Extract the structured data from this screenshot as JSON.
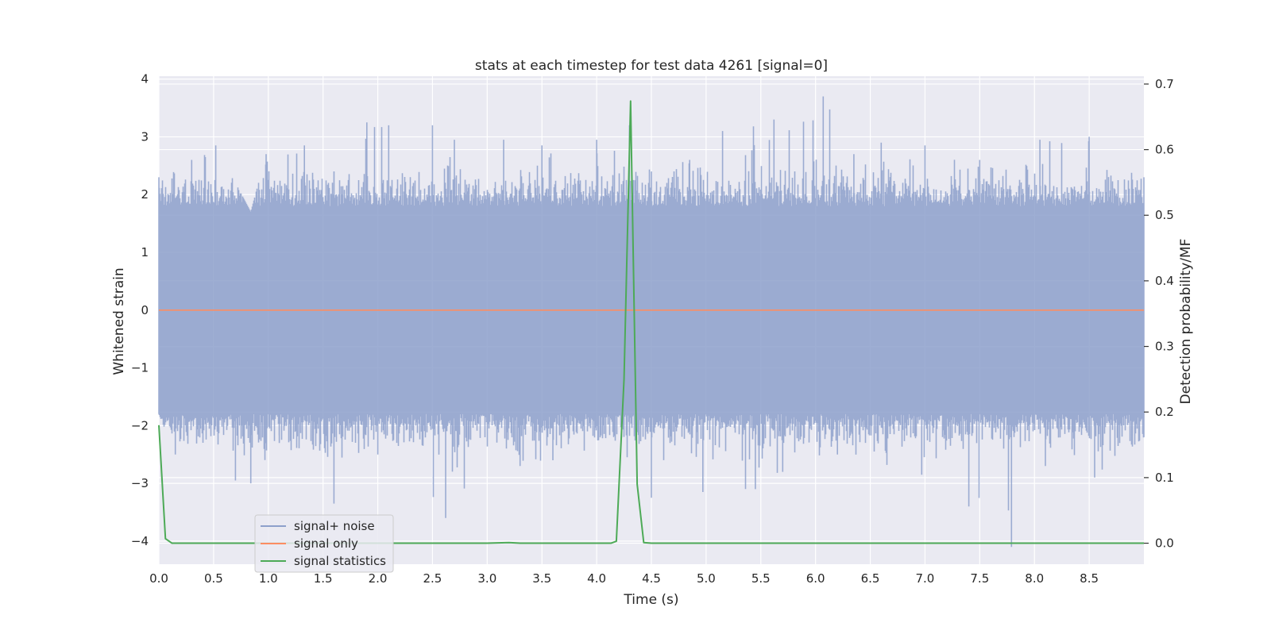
{
  "chart_data": {
    "type": "line",
    "title": "stats at each timestep for test data 4261 [signal=0]",
    "xlabel": "Time (s)",
    "ylabel": "Whitened strain",
    "ylabel_right": "Detection probability/MF",
    "xlim": [
      0.0,
      9.0
    ],
    "ylim": [
      -4.4,
      4.05
    ],
    "ylim_right": [
      -0.032,
      0.712
    ],
    "x_ticks": [
      "0.0",
      "0.5",
      "1.0",
      "1.5",
      "2.0",
      "2.5",
      "3.0",
      "3.5",
      "4.0",
      "4.5",
      "5.0",
      "5.5",
      "6.0",
      "6.5",
      "7.0",
      "7.5",
      "8.0",
      "8.5"
    ],
    "y_ticks": [
      "4",
      "3",
      "2",
      "1",
      "0",
      "−1",
      "−2",
      "−3",
      "−4"
    ],
    "y_right_ticks": [
      "0.7",
      "0.6",
      "0.5",
      "0.4",
      "0.3",
      "0.2",
      "0.1",
      "0.0"
    ],
    "grid": true,
    "legend_position": "lower-left",
    "series": [
      {
        "name": "signal+ noise",
        "color": "#8da0cb",
        "axis": "left",
        "sample_rate_hz": 2048,
        "envelope_max": [
          [
            0.0,
            2.3
          ],
          [
            0.3,
            2.6
          ],
          [
            0.52,
            2.85
          ],
          [
            0.84,
            1.7
          ],
          [
            0.98,
            2.7
          ],
          [
            1.33,
            2.85
          ],
          [
            1.6,
            2.4
          ],
          [
            1.9,
            3.25
          ],
          [
            2.1,
            3.2
          ],
          [
            2.5,
            3.2
          ],
          [
            2.7,
            2.95
          ],
          [
            3.15,
            2.95
          ],
          [
            3.5,
            2.85
          ],
          [
            4.0,
            2.95
          ],
          [
            4.3,
            3.2
          ],
          [
            4.5,
            2.4
          ],
          [
            4.85,
            2.6
          ],
          [
            5.15,
            3.1
          ],
          [
            5.62,
            3.3
          ],
          [
            6.07,
            3.7
          ],
          [
            6.35,
            2.7
          ],
          [
            6.6,
            2.9
          ],
          [
            7.0,
            2.85
          ],
          [
            7.5,
            2.6
          ],
          [
            8.05,
            2.95
          ],
          [
            8.5,
            3.0
          ],
          [
            9.0,
            2.3
          ]
        ],
        "envelope_min": [
          [
            0.0,
            -1.8
          ],
          [
            0.15,
            -2.5
          ],
          [
            0.7,
            -2.95
          ],
          [
            0.84,
            -3.0
          ],
          [
            1.1,
            -2.3
          ],
          [
            1.6,
            -3.35
          ],
          [
            2.0,
            -2.5
          ],
          [
            2.62,
            -3.6
          ],
          [
            3.3,
            -2.7
          ],
          [
            3.6,
            -2.6
          ],
          [
            4.5,
            -3.25
          ],
          [
            4.97,
            -3.15
          ],
          [
            5.45,
            -3.1
          ],
          [
            5.7,
            -2.8
          ],
          [
            6.2,
            -2.5
          ],
          [
            6.97,
            -2.85
          ],
          [
            7.4,
            -3.4
          ],
          [
            7.79,
            -4.1
          ],
          [
            8.1,
            -2.7
          ],
          [
            8.55,
            -2.9
          ],
          [
            9.0,
            -2.2
          ]
        ],
        "typical_range": [
          -1.8,
          1.8
        ]
      },
      {
        "name": "signal only",
        "color": "#fc8d62",
        "axis": "left",
        "x": [
          0.0,
          9.0
        ],
        "y": [
          0.0,
          0.0
        ]
      },
      {
        "name": "signal statistics",
        "color": "#4daa57",
        "axis": "right",
        "x": [
          0.0,
          0.06,
          0.12,
          0.5,
          1.0,
          2.0,
          3.0,
          3.2,
          3.3,
          4.0,
          4.13,
          4.18,
          4.25,
          4.31,
          4.37,
          4.43,
          4.5,
          5.0,
          6.0,
          7.0,
          8.0,
          9.0
        ],
        "y": [
          0.18,
          0.007,
          0.0,
          0.0,
          0.0,
          0.0,
          0.0,
          0.001,
          0.0,
          0.0,
          0.0,
          0.003,
          0.25,
          0.674,
          0.09,
          0.001,
          0.0,
          0.0,
          0.0,
          0.0,
          0.0,
          0.0
        ]
      }
    ]
  }
}
